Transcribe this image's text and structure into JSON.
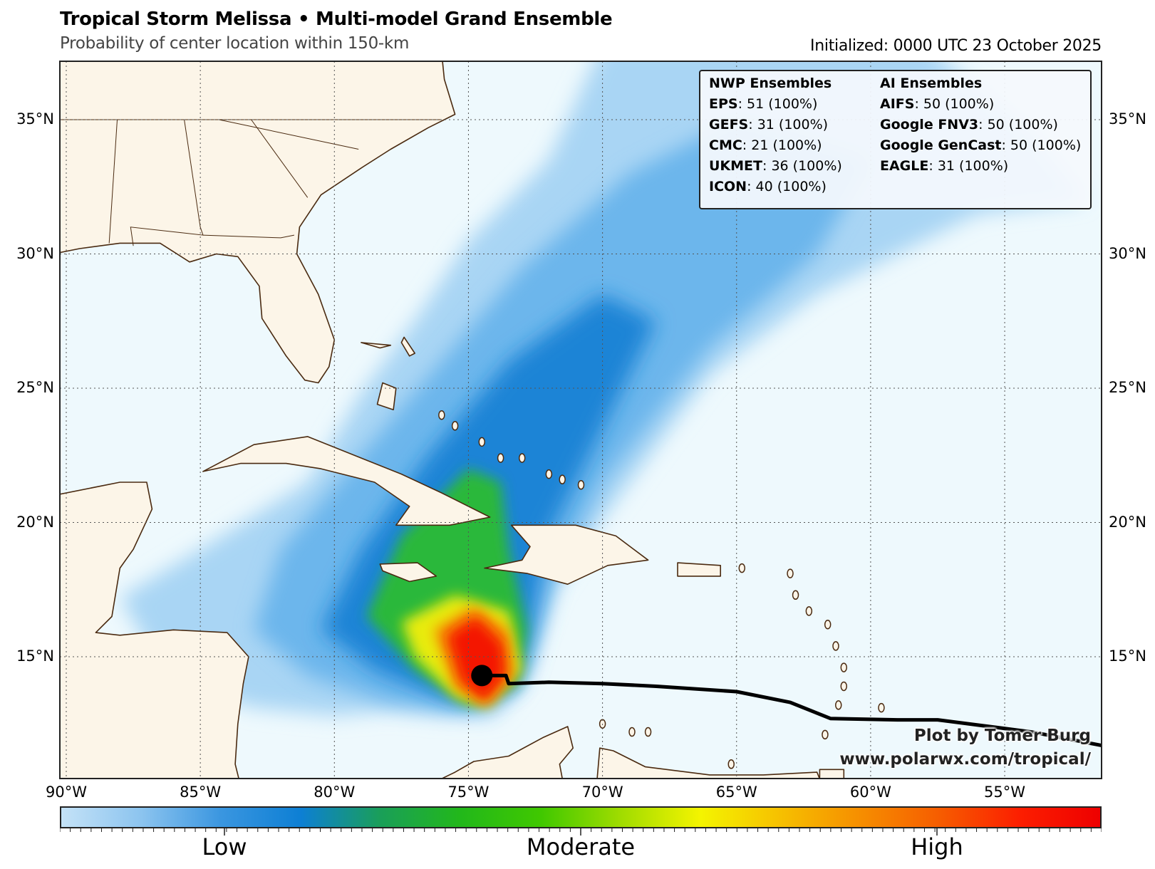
{
  "header": {
    "title": "Tropical Storm Melissa • Multi-model Grand Ensemble",
    "subtitle": "Probability of center location within 150-km",
    "initialized": "Initialized: 0000 UTC 23 October 2025"
  },
  "legend": {
    "nwp_header": "NWP Ensembles",
    "ai_header": "AI Ensembles",
    "nwp": [
      {
        "name": "EPS",
        "value": ": 51 (100%)"
      },
      {
        "name": "GEFS",
        "value": ": 31 (100%)"
      },
      {
        "name": "CMC",
        "value": ": 21 (100%)"
      },
      {
        "name": "UKMET",
        "value": ": 36 (100%)"
      },
      {
        "name": "ICON",
        "value": ": 40 (100%)"
      }
    ],
    "ai": [
      {
        "name": "AIFS",
        "value": ": 50 (100%)"
      },
      {
        "name": "Google FNV3",
        "value": ": 50 (100%)"
      },
      {
        "name": "Google GenCast",
        "value": ": 50 (100%)"
      },
      {
        "name": "EAGLE",
        "value": ": 31 (100%)"
      }
    ]
  },
  "credit": {
    "line1": "Plot by Tomer Burg",
    "line2": "www.polarwx.com/tropical/"
  },
  "map": {
    "lon_range": [
      -90.2,
      -51.4
    ],
    "lat_range": [
      10.5,
      37.2
    ],
    "lon_ticks": [
      {
        "lon": -90,
        "label": "90°W"
      },
      {
        "lon": -85,
        "label": "85°W"
      },
      {
        "lon": -80,
        "label": "80°W"
      },
      {
        "lon": -75,
        "label": "75°W"
      },
      {
        "lon": -70,
        "label": "70°W"
      },
      {
        "lon": -65,
        "label": "65°W"
      },
      {
        "lon": -60,
        "label": "60°W"
      },
      {
        "lon": -55,
        "label": "55°W"
      }
    ],
    "lat_ticks": [
      {
        "lat": 35,
        "label": "35°N"
      },
      {
        "lat": 30,
        "label": "30°N"
      },
      {
        "lat": 25,
        "label": "25°N"
      },
      {
        "lat": 20,
        "label": "20°N"
      },
      {
        "lat": 15,
        "label": "15°N"
      }
    ],
    "current_position": {
      "lon": -74.5,
      "lat": 14.3
    },
    "past_track": [
      [
        -74.5,
        14.3
      ],
      [
        -73.6,
        14.3
      ],
      [
        -73.5,
        14.0
      ],
      [
        -72,
        14.05
      ],
      [
        -70,
        14.0
      ],
      [
        -68,
        13.9
      ],
      [
        -65,
        13.7
      ],
      [
        -63,
        13.3
      ],
      [
        -61.5,
        12.7
      ],
      [
        -59,
        12.65
      ],
      [
        -57.5,
        12.65
      ],
      [
        -54,
        12.2
      ],
      [
        -51.4,
        11.7
      ]
    ],
    "colors": {
      "ocean": "#eef9fd",
      "land": "#fcf5e8",
      "coast": "#4a2a10",
      "track": "#000000"
    }
  },
  "colorbar": {
    "labels": [
      {
        "pos": 0.158,
        "label": "Low"
      },
      {
        "pos": 0.5,
        "label": "Moderate"
      },
      {
        "pos": 0.842,
        "label": "High"
      }
    ],
    "colors": [
      "#c4e2f7",
      "#8cc4ef",
      "#3a96e0",
      "#0d7fd4",
      "#1a9f58",
      "#22b81a",
      "#40c800",
      "#a0dc00",
      "#f4f400",
      "#f6c000",
      "#f68e00",
      "#f65c00",
      "#fc1e00",
      "#ee0000"
    ]
  }
}
